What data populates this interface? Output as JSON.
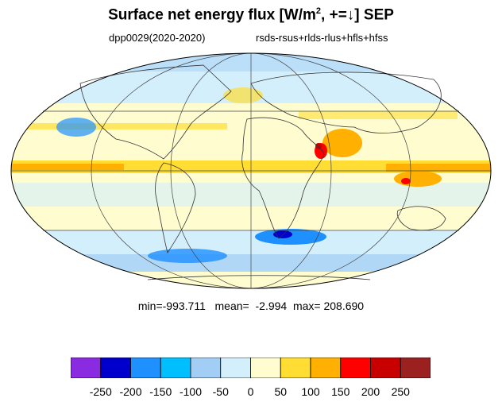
{
  "title": {
    "main": "Surface net energy flux [W/m",
    "sup": "2",
    "tail": ", +=↓] SEP"
  },
  "subtitle_left": "dpp0029(2020-2020)",
  "subtitle_right": "rsds-rsus+rlds-rlus+hfls+hfss",
  "stats": {
    "text": "min=-993.711   mean=  -2.994  max= 208.690"
  },
  "colorbar": {
    "colors": [
      "#8a2be2",
      "#0000cd",
      "#1e90ff",
      "#00bfff",
      "#a2cdf5",
      "#d4effc",
      "#fffdd0",
      "#ffdd33",
      "#ffb000",
      "#ff0000",
      "#c80000",
      "#9b2020"
    ],
    "tick_labels": [
      "-250",
      "-200",
      "-150",
      "-100",
      "-50",
      "0",
      "50",
      "100",
      "150",
      "200",
      "250"
    ]
  }
}
